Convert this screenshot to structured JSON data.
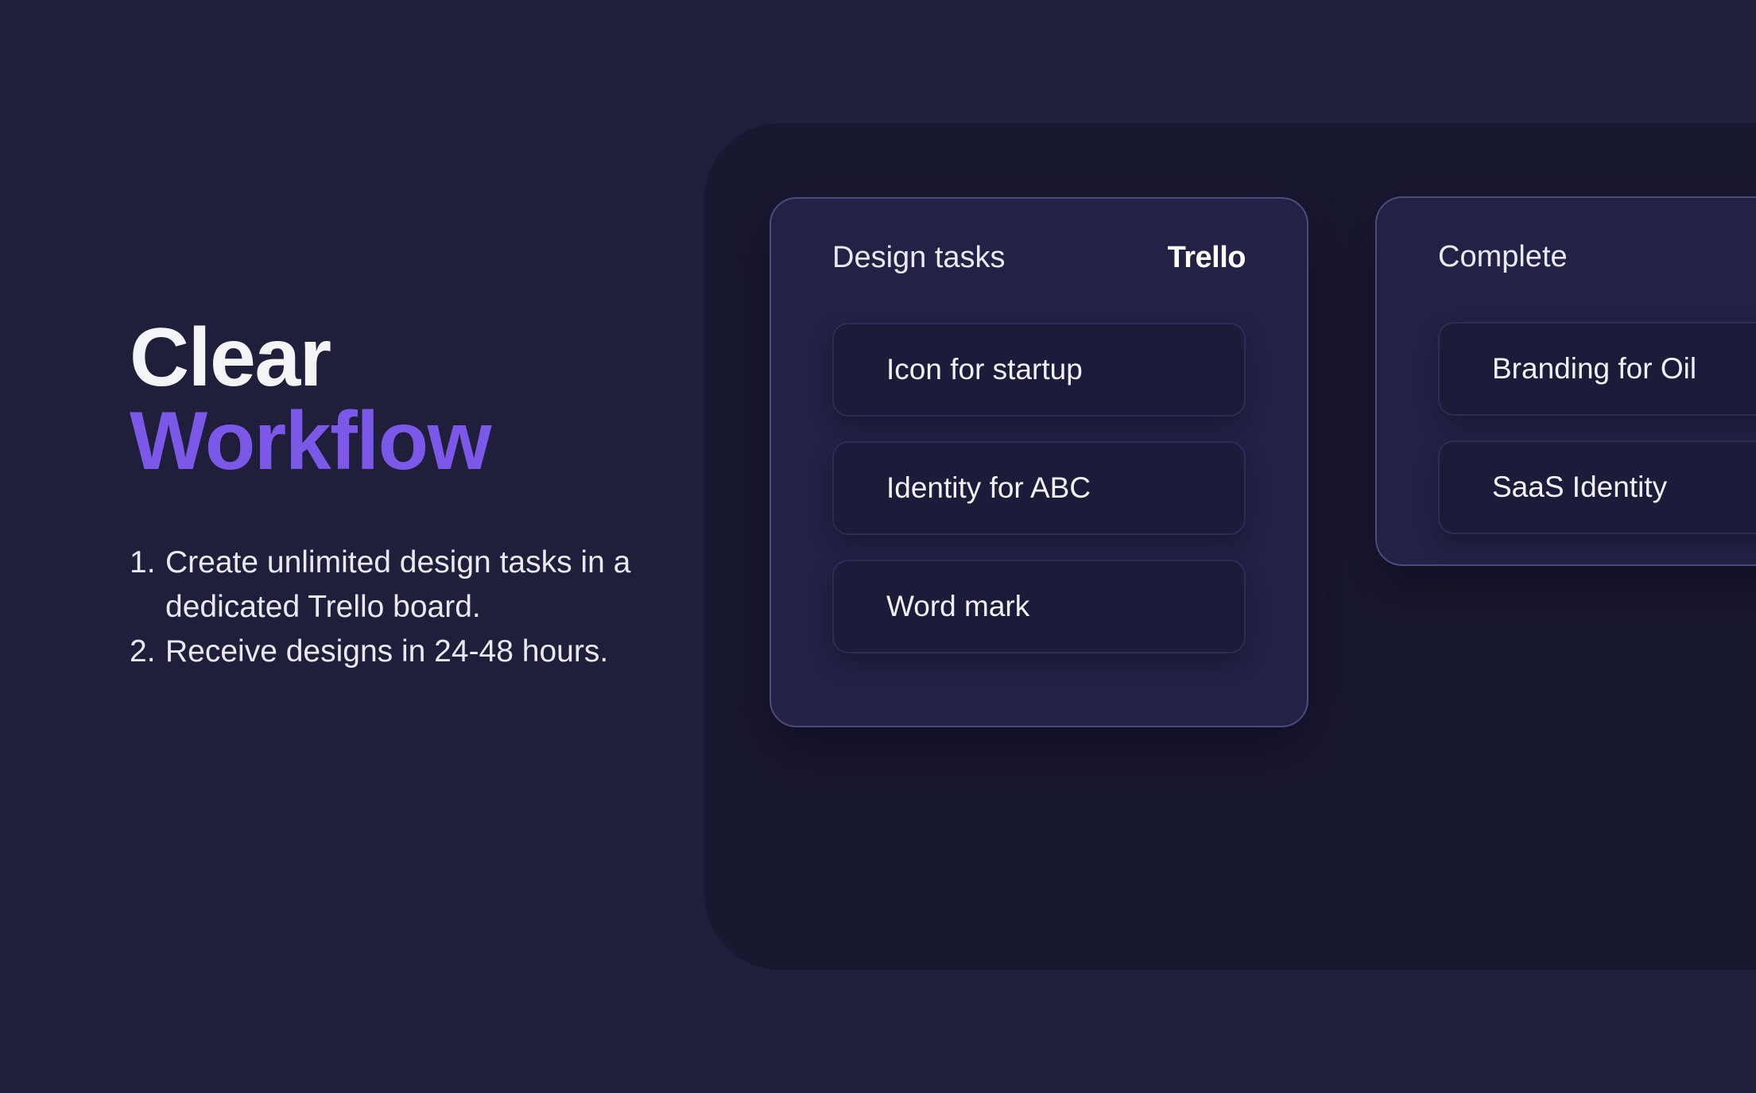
{
  "theme": {
    "accent": "#7b58e8",
    "page_bg": "#1f1e3b",
    "panel_bg": "#191831",
    "column_bg": "#232246",
    "column_border": "#4c4b80",
    "card_bg": "#1c1b39",
    "card_border": "#2d2c54",
    "text_primary": "#f4f4f7",
    "text_secondary": "#e9e9f0"
  },
  "hero": {
    "title_line1": "Clear",
    "title_line2": "Workflow",
    "steps": [
      {
        "number": "1.",
        "text": "Create unlimited design tasks in a\ndedicated Trello board."
      },
      {
        "number": "2.",
        "text": "Receive designs in 24-48 hours."
      }
    ]
  },
  "board": {
    "columns": [
      {
        "title": "Design tasks",
        "brand": "Trello",
        "cards": [
          "Icon for startup",
          "Identity for ABC",
          "Word mark"
        ]
      },
      {
        "title": "Complete",
        "cards": [
          "Branding for Oil",
          "SaaS Identity"
        ]
      }
    ]
  }
}
